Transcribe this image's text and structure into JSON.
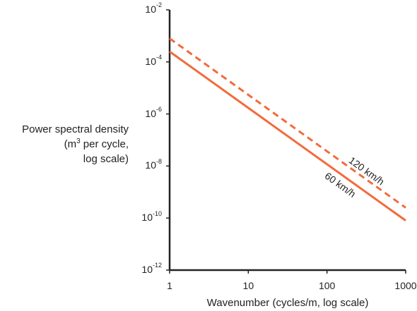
{
  "chart_data": {
    "type": "line",
    "ylabel_lines": [
      "Power spectral density",
      "(m",
      "3",
      " per cycle,",
      "log scale)"
    ],
    "xlabel": "Wavenumber (cycles/m, log scale)",
    "xscale": "log",
    "yscale": "log",
    "xlim": [
      1,
      1000
    ],
    "ylim": [
      1e-12,
      0.01
    ],
    "grid": false,
    "x_ticks": [
      "1",
      "10",
      "100",
      "1000"
    ],
    "y_ticks": [
      {
        "base": "10",
        "exp": "-2"
      },
      {
        "base": "10",
        "exp": "-4"
      },
      {
        "base": "10",
        "exp": "-6"
      },
      {
        "base": "10",
        "exp": "-8"
      },
      {
        "base": "10",
        "exp": "-10"
      },
      {
        "base": "10",
        "exp": "-12"
      }
    ],
    "series": [
      {
        "name": "60 km/h",
        "style": "solid",
        "color": "#f26b3a",
        "x": [
          1,
          1000
        ],
        "y": [
          0.00025,
          8e-11
        ]
      },
      {
        "name": "120 km/h",
        "style": "dashed",
        "color": "#f26b3a",
        "x": [
          1,
          1000
        ],
        "y": [
          0.0008,
          2.5e-10
        ]
      }
    ]
  }
}
